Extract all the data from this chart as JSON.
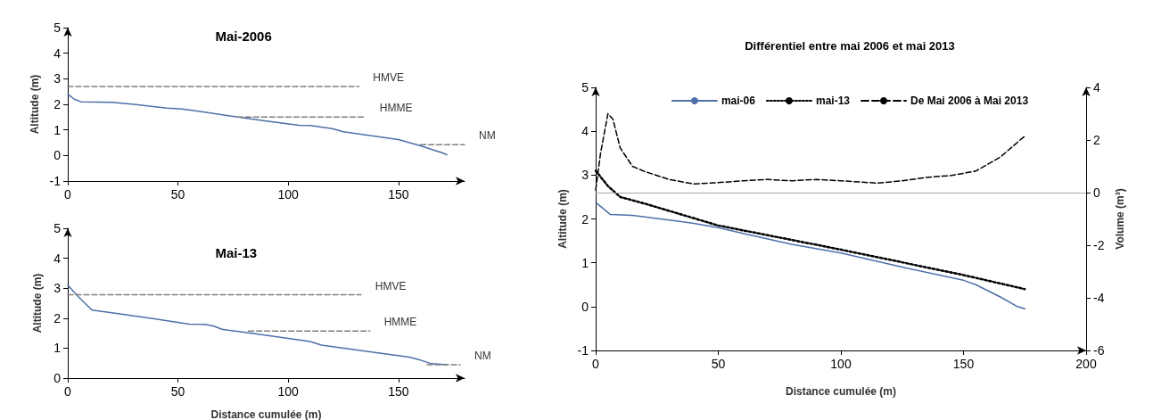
{
  "chart_data": [
    {
      "type": "line",
      "title": "Mai-2006",
      "ylabel": "Altitude (m)",
      "xlim": [
        0,
        180
      ],
      "xticks": [
        0,
        50,
        100,
        150
      ],
      "ylim": [
        -1,
        5
      ],
      "yticks": [
        -1,
        0,
        1,
        2,
        3,
        4,
        5
      ],
      "grid": false,
      "legend": false,
      "marker": "none",
      "series": [
        {
          "color": "#4f6fa8",
          "line_style": "solid",
          "x": [
            0,
            3,
            6,
            20,
            30,
            45,
            52,
            60,
            75,
            90,
            105,
            110,
            120,
            125,
            150,
            160,
            170,
            172
          ],
          "values": [
            2.4,
            2.2,
            2.1,
            2.08,
            2.0,
            1.85,
            1.82,
            1.72,
            1.53,
            1.35,
            1.18,
            1.17,
            1.05,
            0.93,
            0.62,
            0.38,
            0.1,
            0.03
          ]
        },
        {
          "name": "HMVE",
          "color": "#7f7f7f",
          "line_style": "dashed",
          "x": [
            0,
            132
          ],
          "values": [
            2.7,
            2.7
          ]
        },
        {
          "name": "HMME",
          "color": "#7f7f7f",
          "line_style": "dashed",
          "x": [
            77,
            135
          ],
          "values": [
            1.5,
            1.5
          ]
        },
        {
          "name": "NM",
          "color": "#7f7f7f",
          "line_style": "dashed",
          "x": [
            160,
            180
          ],
          "values": [
            0.42,
            0.42
          ]
        }
      ]
    },
    {
      "type": "line",
      "title": "Mai-13",
      "xlabel": "Distance cumulée (m)",
      "ylabel": "Altitude (m)",
      "xlim": [
        0,
        180
      ],
      "xticks": [
        0,
        50,
        100,
        150
      ],
      "ylim": [
        0,
        5
      ],
      "yticks": [
        0,
        1,
        2,
        3,
        4,
        5
      ],
      "grid": false,
      "legend": false,
      "marker": "none",
      "series": [
        {
          "color": "#4f6fa8",
          "line_style": "solid",
          "x": [
            0,
            5,
            11,
            20,
            40,
            55,
            62,
            66,
            70,
            85,
            110,
            115,
            140,
            155,
            160,
            165,
            172
          ],
          "values": [
            3.1,
            2.7,
            2.27,
            2.18,
            1.97,
            1.8,
            1.79,
            1.74,
            1.63,
            1.48,
            1.22,
            1.1,
            0.85,
            0.7,
            0.6,
            0.48,
            0.45
          ]
        },
        {
          "name": "HMVE",
          "color": "#7f7f7f",
          "line_style": "dashed",
          "x": [
            0,
            133
          ],
          "values": [
            2.78,
            2.78
          ]
        },
        {
          "name": "HMME",
          "color": "#7f7f7f",
          "line_style": "dashed",
          "x": [
            82,
            137
          ],
          "values": [
            1.57,
            1.57
          ]
        },
        {
          "name": "NM",
          "color": "#7f7f7f",
          "line_style": "dashed",
          "x": [
            163,
            178
          ],
          "values": [
            0.45,
            0.45
          ]
        }
      ]
    },
    {
      "type": "line",
      "title": "Différentiel entre mai 2006 et mai 2013",
      "xlabel": "Distance cumulée (m)",
      "ylabel": "Altitude (m)",
      "y2label": "Volume (m³)",
      "xlim": [
        0,
        200
      ],
      "xticks": [
        0,
        50,
        100,
        150,
        200
      ],
      "ylim": [
        -1,
        5
      ],
      "yticks": [
        -1,
        0,
        1,
        2,
        3,
        4,
        5
      ],
      "y2lim": [
        -6,
        4
      ],
      "y2ticks": [
        -6,
        -4,
        -2,
        0,
        2,
        4
      ],
      "grid": false,
      "legend": "top",
      "marker": "none",
      "ref_lines": [
        {
          "axis": "y2",
          "value": 0,
          "color": "#a6a6a6"
        }
      ],
      "series": [
        {
          "name": "mai-06",
          "color": "#4f6fa8",
          "line_style": "solid",
          "x": [
            0,
            6,
            15,
            40,
            50,
            60,
            80,
            100,
            125,
            150,
            155,
            165,
            172,
            175
          ],
          "values": [
            2.38,
            2.1,
            2.08,
            1.9,
            1.8,
            1.67,
            1.42,
            1.22,
            0.9,
            0.6,
            0.5,
            0.22,
            0,
            -0.05
          ]
        },
        {
          "name": "mai-13",
          "color": "#000000",
          "line_style": "dotted",
          "x": [
            0,
            5,
            10,
            20,
            50,
            100,
            150,
            175
          ],
          "values": [
            3.1,
            2.75,
            2.5,
            2.35,
            1.85,
            1.3,
            0.72,
            0.4
          ]
        },
        {
          "name": "De Mai 2006 à Mai 2013",
          "color": "#000000",
          "line_style": "dashed",
          "axis": "y2",
          "x": [
            0,
            2,
            5,
            7,
            10,
            15,
            20,
            30,
            40,
            50,
            60,
            70,
            80,
            90,
            100,
            115,
            125,
            135,
            145,
            155,
            165,
            175
          ],
          "values": [
            0.1,
            1.5,
            3.0,
            2.8,
            1.7,
            1.0,
            0.8,
            0.5,
            0.33,
            0.38,
            0.45,
            0.5,
            0.45,
            0.5,
            0.45,
            0.36,
            0.45,
            0.58,
            0.65,
            0.82,
            1.35,
            2.15
          ]
        }
      ]
    }
  ]
}
